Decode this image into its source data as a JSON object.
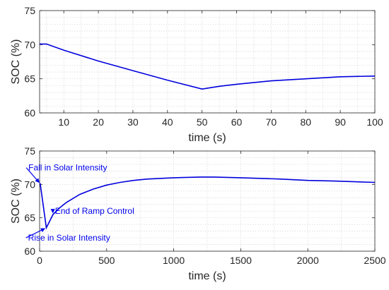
{
  "chart_data": [
    {
      "type": "line",
      "xlabel": "time (s)",
      "ylabel": "SOC (%)",
      "xlim": [
        3,
        100
      ],
      "ylim": [
        60,
        75
      ],
      "xticks": [
        10,
        20,
        30,
        40,
        50,
        60,
        70,
        80,
        90,
        100
      ],
      "yticks": [
        60,
        65,
        70,
        75
      ],
      "grid": true,
      "series": [
        {
          "color": "#0000dd",
          "x": [
            3,
            5,
            10,
            20,
            30,
            40,
            50,
            55,
            60,
            70,
            80,
            90,
            100
          ],
          "y": [
            70.1,
            70.1,
            69.2,
            67.6,
            66.2,
            64.8,
            63.5,
            63.9,
            64.2,
            64.7,
            65.0,
            65.3,
            65.4
          ]
        }
      ],
      "annotations": []
    },
    {
      "type": "line",
      "xlabel": "time (s)",
      "ylabel": "SOC (%)",
      "xlim": [
        0,
        2500
      ],
      "ylim": [
        60,
        75
      ],
      "xticks": [
        0,
        500,
        1000,
        1500,
        2000,
        2500
      ],
      "yticks": [
        60,
        65,
        70,
        75
      ],
      "grid": true,
      "series": [
        {
          "color": "#0000dd",
          "x": [
            0,
            5,
            50,
            100,
            150,
            200,
            300,
            400,
            500,
            600,
            700,
            800,
            1000,
            1200,
            1300,
            1500,
            1800,
            2000,
            2200,
            2500
          ],
          "y": [
            70.1,
            70.1,
            63.5,
            65.5,
            66.5,
            67.3,
            68.5,
            69.3,
            69.9,
            70.3,
            70.6,
            70.8,
            71.0,
            71.1,
            71.1,
            71.0,
            70.8,
            70.6,
            70.5,
            70.3
          ]
        }
      ],
      "annotations": [
        {
          "text": "Fall in Solar Intensity",
          "x": 5,
          "y": 70.1,
          "text_x": 210,
          "text_y": 72.5
        },
        {
          "text": "End of Ramp Control",
          "x": 100,
          "y": 65.5,
          "text_x": 410,
          "text_y": 66.0
        },
        {
          "text": "Rise in Solar Intensity",
          "x": 50,
          "y": 63.5,
          "text_x": 220,
          "text_y": 62.0
        }
      ]
    }
  ]
}
